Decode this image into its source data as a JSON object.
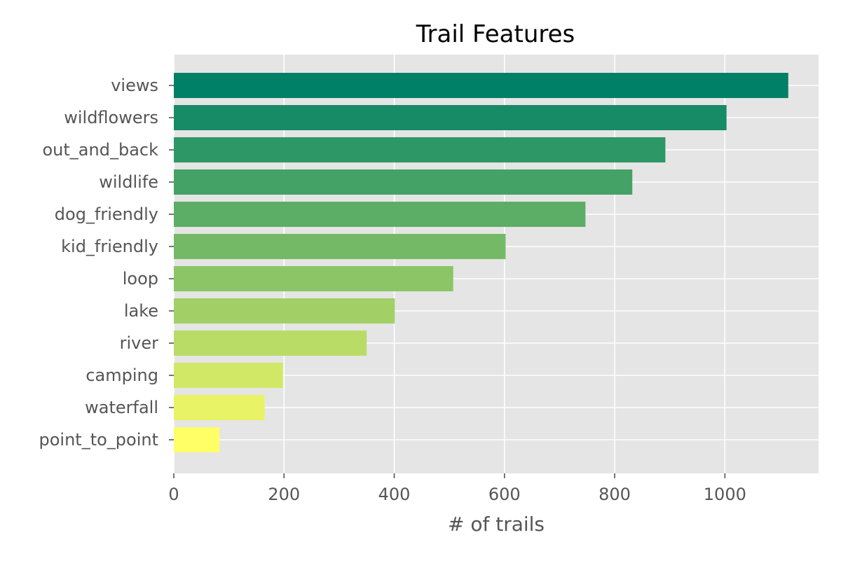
{
  "chart_data": {
    "type": "bar",
    "orientation": "horizontal",
    "title": "Trail Features",
    "xlabel": "# of trails",
    "ylabel": "",
    "xlim": [
      0,
      1170
    ],
    "xticks": [
      0,
      200,
      400,
      600,
      800,
      1000
    ],
    "grid": true,
    "legend": "none",
    "colors": {
      "panel_background": "#e5e5e5",
      "grid": "#ffffff",
      "tick_text": "#555555",
      "title_text": "#000000",
      "gradient_top": "#008066",
      "gradient_bottom": "#ffff66"
    },
    "categories": [
      "views",
      "wildflowers",
      "out_and_back",
      "wildlife",
      "dog_friendly",
      "kid_friendly",
      "loop",
      "lake",
      "river",
      "camping",
      "waterfall",
      "point_to_point"
    ],
    "values": [
      1115,
      1003,
      892,
      832,
      747,
      602,
      507,
      401,
      350,
      198,
      165,
      83
    ],
    "bar_colors": [
      "#008066",
      "#178b66",
      "#2e9766",
      "#45a266",
      "#5cae66",
      "#74b966",
      "#8bc566",
      "#a2d066",
      "#b9dc66",
      "#d1e866",
      "#e8f366",
      "#ffff66"
    ]
  }
}
